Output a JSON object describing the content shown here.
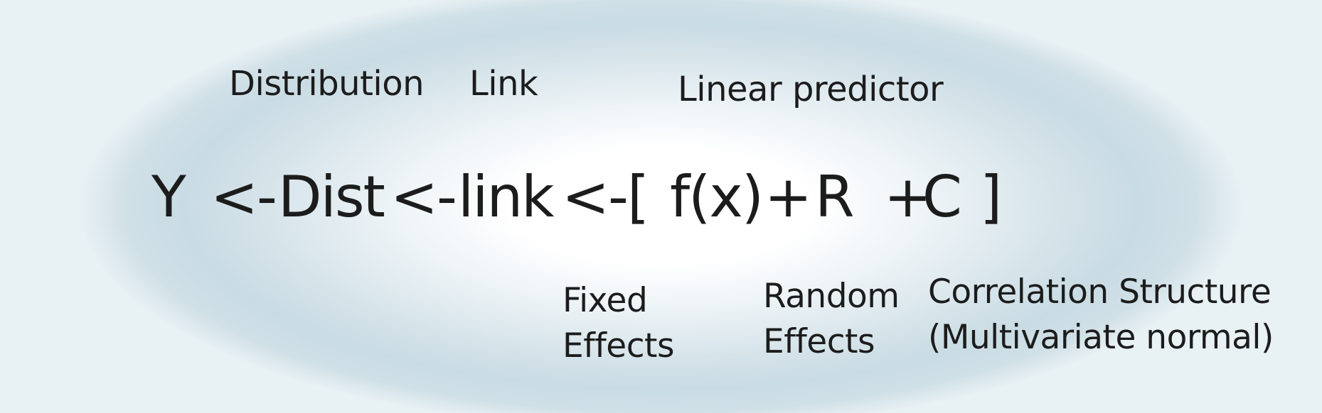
{
  "top_labels": {
    "distribution": "Distribution",
    "link": "Link",
    "linear_predictor": "Linear predictor"
  },
  "equation": {
    "response": "Y",
    "arrow_1": "<-",
    "distribution": "Dist",
    "arrow_2": "<-",
    "link": "link",
    "arrow_3": "<-",
    "open_bracket": "[",
    "fixed_term": "f(x)",
    "plus_1": "+",
    "random_term": "R",
    "plus_2": "+",
    "correlation_term": "C",
    "close_bracket": "]"
  },
  "bottom_labels": {
    "fixed_effects": [
      "Fixed",
      "Effects"
    ],
    "random_effects": [
      "Random",
      "Effects"
    ],
    "correlation_structure": [
      "Correlation Structure",
      "(Multivariate normal)"
    ]
  }
}
